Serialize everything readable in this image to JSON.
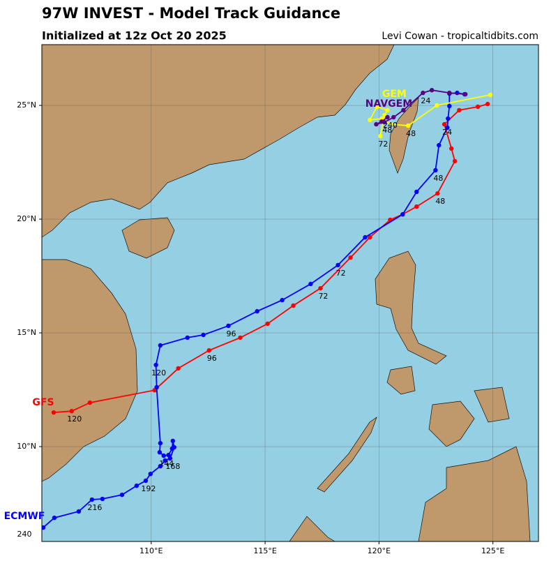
{
  "chart_data": {
    "type": "line",
    "title": "97W INVEST - Model Track Guidance",
    "subtitle": "Initialized at 12z Oct 20 2025",
    "credit": "Levi Cowan - tropicaltidbits.com",
    "xlim": [
      105.2,
      127.0
    ],
    "ylim": [
      5.83,
      27.67
    ],
    "xticks": [
      {
        "value": 110,
        "label": "110°E"
      },
      {
        "value": 115,
        "label": "115°E"
      },
      {
        "value": 120,
        "label": "120°E"
      },
      {
        "value": 125,
        "label": "125°E"
      }
    ],
    "yticks": [
      {
        "value": 10,
        "label": "10°N"
      },
      {
        "value": 15,
        "label": "15°N"
      },
      {
        "value": 20,
        "label": "20°N"
      },
      {
        "value": 25,
        "label": "25°N"
      }
    ],
    "grid": true,
    "series": [
      {
        "name": "GFS",
        "color": "#ff0000",
        "x": [
          124.77,
          124.34,
          123.52,
          122.87,
          123.18,
          123.33,
          122.57,
          121.65,
          121.04,
          120.49,
          119.6,
          118.75,
          117.43,
          116.24,
          115.11,
          113.91,
          112.54,
          111.19,
          110.15,
          107.31,
          106.51,
          105.72
        ],
        "values": [
          25.06,
          24.94,
          24.79,
          24.17,
          23.1,
          22.55,
          21.13,
          20.55,
          20.21,
          19.97,
          19.2,
          18.31,
          16.96,
          16.2,
          15.4,
          14.79,
          14.23,
          13.44,
          12.48,
          11.93,
          11.56,
          11.5
        ],
        "labels": [
          null,
          null,
          null,
          "24",
          null,
          null,
          "48",
          null,
          null,
          null,
          null,
          null,
          "72",
          null,
          null,
          null,
          "96",
          null,
          null,
          null,
          "120",
          null
        ]
      },
      {
        "name": "ECMWF",
        "color": "#0000ff",
        "x": [
          123.76,
          123.43,
          123.09,
          123.09,
          123.03,
          123.0,
          122.63,
          122.48,
          121.65,
          121.04,
          119.39,
          118.2,
          117.0,
          115.75,
          114.65,
          113.39,
          112.29,
          111.59,
          110.4,
          110.21,
          110.24,
          110.4,
          110.37,
          110.55,
          110.76,
          110.92,
          110.95,
          111.01,
          110.83,
          110.61,
          110.4,
          109.97,
          109.76,
          109.36,
          108.72,
          107.86,
          107.4,
          106.82,
          105.75,
          105.26
        ],
        "values": [
          25.49,
          25.55,
          25.52,
          24.97,
          24.42,
          24.02,
          23.25,
          22.15,
          21.2,
          20.21,
          19.2,
          17.98,
          17.15,
          16.44,
          15.95,
          15.31,
          14.91,
          14.79,
          14.45,
          13.59,
          12.61,
          10.15,
          9.75,
          9.6,
          9.63,
          9.91,
          10.25,
          9.97,
          9.48,
          9.39,
          9.14,
          8.8,
          8.5,
          8.28,
          7.88,
          7.7,
          7.67,
          7.15,
          6.87,
          6.44
        ],
        "labels": [
          null,
          null,
          null,
          null,
          null,
          null,
          null,
          "48",
          null,
          null,
          null,
          "72",
          null,
          null,
          null,
          "96",
          null,
          null,
          null,
          "120",
          null,
          null,
          null,
          "144",
          null,
          null,
          null,
          null,
          "168",
          null,
          null,
          null,
          "192",
          null,
          null,
          null,
          "216",
          null,
          null,
          "240"
        ]
      },
      {
        "name": "GEM",
        "color": "#ffff00",
        "x": [
          124.89,
          122.54,
          121.28,
          120.52,
          120.12,
          119.6,
          119.91,
          120.37,
          120.24,
          120.06
        ],
        "values": [
          25.46,
          25.0,
          24.11,
          24.17,
          24.42,
          24.36,
          24.94,
          24.79,
          24.57,
          23.65
        ],
        "labels": [
          null,
          null,
          "48",
          null,
          null,
          null,
          null,
          null,
          null,
          "72"
        ]
      },
      {
        "name": "NAVGEM",
        "color": "#5a0080",
        "x": [
          123.79,
          123.09,
          122.32,
          121.93,
          121.07,
          120.64,
          120.24,
          119.88,
          120.12,
          120.37
        ],
        "values": [
          25.49,
          25.55,
          25.67,
          25.55,
          24.79,
          24.48,
          24.26,
          24.17,
          24.29,
          24.48
        ],
        "labels": [
          null,
          null,
          null,
          "24",
          null,
          null,
          "48",
          null,
          null,
          "240"
        ]
      }
    ]
  }
}
